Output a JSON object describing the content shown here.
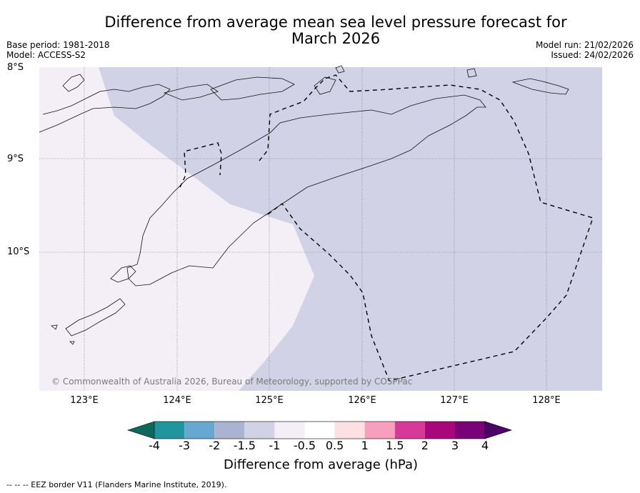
{
  "title": "Difference from average mean sea level pressure forecast for March 2026",
  "title_line1": "Difference from average mean sea level pressure forecast for",
  "title_line2": "March 2026",
  "meta_left": {
    "base_period": "Base period: 1981-2018",
    "model": "Model: ACCESS-S2"
  },
  "meta_right": {
    "model_run": "Model run: 21/02/2026",
    "issued": "Issued: 24/02/2026"
  },
  "map": {
    "lat_labels": [
      "8°S",
      "9°S",
      "10°S"
    ],
    "lon_labels": [
      "123°E",
      "124°E",
      "125°E",
      "126°E",
      "127°E",
      "128°E"
    ],
    "shading": {
      "west_region_color": "#f4eef7",
      "east_region_color": "#d2d2e7",
      "west_range": "-0.5 to -1 hPa",
      "east_range": "-1 to -1.5 hPa"
    },
    "copyright": "© Commonwealth of Australia 2026, Bureau of Meteorology, supported by COSPPac"
  },
  "colorbar": {
    "ticks": [
      "-4",
      "-3",
      "-2",
      "-1.5",
      "-1",
      "-0.5",
      "0.5",
      "1",
      "1.5",
      "2",
      "3",
      "4"
    ],
    "colors": [
      "#0c6a5d",
      "#1f969f",
      "#66a8d2",
      "#abb3d2",
      "#d2d2e7",
      "#f4eef7",
      "#ffffff",
      "#fde0e2",
      "#f89fbe",
      "#d7399b",
      "#a9067b",
      "#7a0177",
      "#4b0567"
    ],
    "label": "Difference from average (hPa)"
  },
  "footnote": "--  --  -- EEZ border V11 (Flanders Marine Institute, 2019)."
}
